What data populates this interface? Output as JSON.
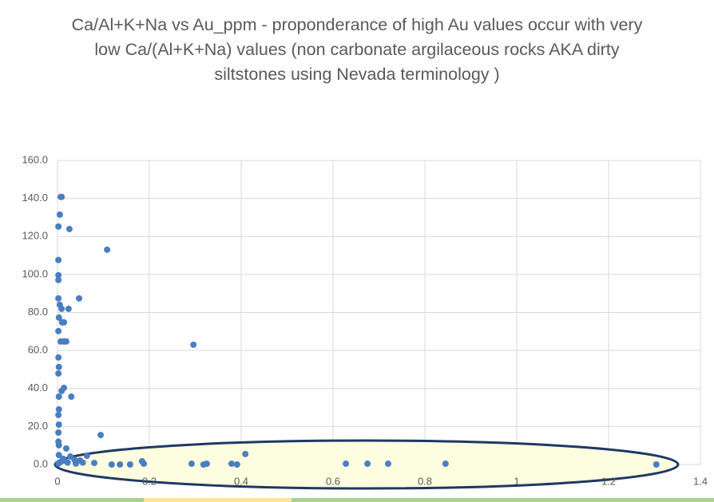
{
  "chart_data": {
    "type": "scatter",
    "title": "Ca/Al+K+Na vs Au_ppm - proponderance of high Au values occur with very low Ca/(Al+K+Na) values (non carbonate argilaceous rocks AKA dirty siltstones using Nevada terminology )",
    "x": [
      0.007,
      0.009,
      0.005,
      0.002,
      0.026,
      0.108,
      0.002,
      0.002,
      0.002,
      0.047,
      0.002,
      0.005,
      0.009,
      0.024,
      0.003,
      0.01,
      0.014,
      0.002,
      0.007,
      0.014,
      0.019,
      0.296,
      0.002,
      0.003,
      0.002,
      0.014,
      0.009,
      0.003,
      0.03,
      0.003,
      0.002,
      0.003,
      0.002,
      0.094,
      0.003,
      0.019,
      0.064,
      0.028,
      0.037,
      0.049,
      0.08,
      0.118,
      0.136,
      0.158,
      0.184,
      0.188,
      0.292,
      0.318,
      0.325,
      0.379,
      0.391,
      0.409,
      0.628,
      0.675,
      0.72,
      0.845,
      1.304,
      0.002,
      0.006,
      0.015,
      0.022,
      0.04,
      0.055,
      0.003,
      0.012,
      0.002
    ],
    "values": [
      140.8,
      140.8,
      131.5,
      125.2,
      123.9,
      113.0,
      107.6,
      99.6,
      97.1,
      87.4,
      87.4,
      84.0,
      81.9,
      81.9,
      77.3,
      74.8,
      74.8,
      70.2,
      64.7,
      64.7,
      64.7,
      63.0,
      56.3,
      51.3,
      47.9,
      40.3,
      38.7,
      35.7,
      35.7,
      29.0,
      26.1,
      21.0,
      16.8,
      15.5,
      10.1,
      8.4,
      4.6,
      4.2,
      2.5,
      2.1,
      0.8,
      0.0,
      0.0,
      0.0,
      1.7,
      0.4,
      0.4,
      0.0,
      0.4,
      0.4,
      0.0,
      5.5,
      0.4,
      0.4,
      0.4,
      0.4,
      0.0,
      0.5,
      1.2,
      2.0,
      1.0,
      0.5,
      1.0,
      5.0,
      3.0,
      12.0
    ],
    "color": "#4a7ec2",
    "xlim": [
      0,
      1.4
    ],
    "xticks": [
      0,
      0.2,
      0.4,
      0.6,
      0.8,
      1,
      1.2,
      1.4
    ],
    "ylim": [
      0,
      160
    ],
    "yticks": [
      {
        "value": 0,
        "label": "0.0"
      },
      {
        "value": 20,
        "label": "20.0"
      },
      {
        "value": 40,
        "label": "40.0"
      },
      {
        "value": 60,
        "label": "60.0"
      },
      {
        "value": 80,
        "label": "80.0"
      },
      {
        "value": 100,
        "label": "100.0"
      },
      {
        "value": 120,
        "label": "120.0"
      },
      {
        "value": 140,
        "label": "140.0"
      },
      {
        "value": 160,
        "label": "160.0"
      }
    ],
    "grid": true
  }
}
